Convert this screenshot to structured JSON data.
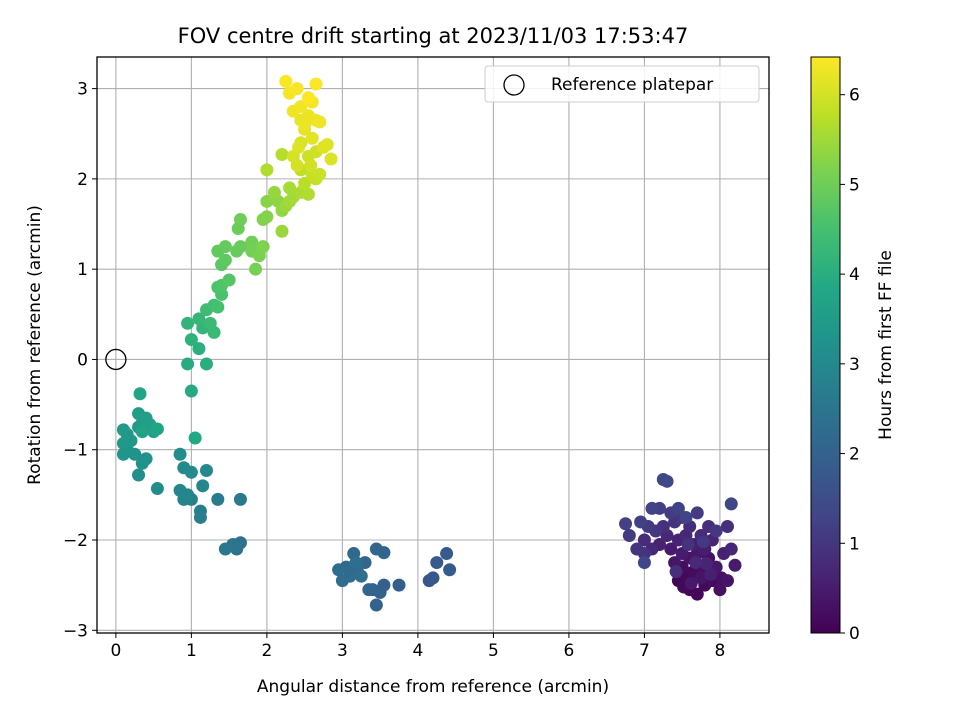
{
  "chart_data": {
    "type": "scatter",
    "title": "FOV centre drift starting at 2023/11/03 17:53:47",
    "xlabel": "Angular distance from reference (arcmin)",
    "ylabel": "Rotation from reference (arcmin)",
    "xlim": [
      -0.25,
      8.65
    ],
    "ylim": [
      -3.03,
      3.35
    ],
    "xticks": [
      "0",
      "1",
      "2",
      "3",
      "4",
      "5",
      "6",
      "7",
      "8"
    ],
    "yticks": [
      "−3",
      "−2",
      "−1",
      "0",
      "1",
      "2",
      "3"
    ],
    "grid": true,
    "legend": {
      "position": "top-right",
      "entries": [
        "Reference platepar"
      ]
    },
    "colorbar": {
      "label": "Hours from first FF file",
      "colormap": "viridis",
      "range": [
        0,
        6.42
      ],
      "ticks": [
        "0",
        "1",
        "2",
        "3",
        "4",
        "5",
        "6"
      ]
    },
    "reference": {
      "x": 0,
      "y": 0
    },
    "marker_color": "#000000",
    "points": [
      [
        7.45,
        -2.45,
        0.05
      ],
      [
        7.6,
        -2.55,
        0.08
      ],
      [
        7.7,
        -2.6,
        0.1
      ],
      [
        7.55,
        -2.4,
        0.12
      ],
      [
        7.8,
        -2.5,
        0.15
      ],
      [
        7.65,
        -2.35,
        0.18
      ],
      [
        7.9,
        -2.45,
        0.2
      ],
      [
        7.5,
        -2.3,
        0.22
      ],
      [
        8.0,
        -2.55,
        0.25
      ],
      [
        7.75,
        -2.3,
        0.28
      ],
      [
        7.85,
        -2.2,
        0.3
      ],
      [
        7.6,
        -2.2,
        0.33
      ],
      [
        8.1,
        -2.45,
        0.35
      ],
      [
        7.4,
        -2.25,
        0.38
      ],
      [
        7.7,
        -2.15,
        0.4
      ],
      [
        7.95,
        -2.3,
        0.42
      ],
      [
        8.2,
        -2.28,
        0.45
      ],
      [
        7.5,
        -2.15,
        0.48
      ],
      [
        7.35,
        -2.1,
        0.5
      ],
      [
        7.8,
        -2.1,
        0.52
      ],
      [
        7.65,
        -2.05,
        0.55
      ],
      [
        8.05,
        -2.15,
        0.58
      ],
      [
        7.2,
        -2.05,
        0.6
      ],
      [
        7.45,
        -2.0,
        0.62
      ],
      [
        7.9,
        -2.0,
        0.65
      ],
      [
        8.15,
        -2.1,
        0.68
      ],
      [
        7.1,
        -2.1,
        0.7
      ],
      [
        7.55,
        -1.95,
        0.72
      ],
      [
        7.3,
        -1.95,
        0.75
      ],
      [
        7.75,
        -1.95,
        0.78
      ],
      [
        7.0,
        -2.0,
        0.8
      ],
      [
        7.6,
        -1.85,
        0.82
      ],
      [
        7.85,
        -1.85,
        0.85
      ],
      [
        8.1,
        -1.85,
        0.88
      ],
      [
        7.25,
        -1.85,
        0.9
      ],
      [
        7.4,
        -1.8,
        0.92
      ],
      [
        7.0,
        -2.15,
        0.95
      ],
      [
        6.9,
        -2.1,
        0.98
      ],
      [
        7.15,
        -1.9,
        1.0
      ],
      [
        7.5,
        -1.75,
        1.02
      ],
      [
        7.95,
        -1.9,
        1.05
      ],
      [
        6.8,
        -1.95,
        1.08
      ],
      [
        7.05,
        -1.85,
        1.1
      ],
      [
        7.7,
        -1.7,
        1.12
      ],
      [
        7.35,
        -1.7,
        1.15
      ],
      [
        6.95,
        -1.8,
        1.18
      ],
      [
        7.2,
        -1.65,
        1.2
      ],
      [
        6.75,
        -1.82,
        1.22
      ],
      [
        7.45,
        -1.65,
        1.25
      ],
      [
        7.1,
        -1.65,
        1.28
      ],
      [
        7.55,
        -1.75,
        1.3
      ],
      [
        8.15,
        -1.6,
        1.32
      ],
      [
        7.0,
        -2.25,
        1.35
      ],
      [
        7.3,
        -1.35,
        1.38
      ],
      [
        7.25,
        -1.33,
        1.4
      ],
      [
        7.75,
        -2.42,
        0.36
      ],
      [
        7.62,
        -2.48,
        0.44
      ],
      [
        7.88,
        -2.38,
        0.56
      ],
      [
        7.52,
        -2.52,
        0.14
      ],
      [
        7.82,
        -2.26,
        0.64
      ],
      [
        7.68,
        -2.25,
        0.74
      ],
      [
        7.42,
        -2.35,
        0.84
      ],
      [
        8.02,
        -2.42,
        0.26
      ],
      [
        7.58,
        -2.05,
        0.94
      ],
      [
        7.78,
        -2.02,
        1.04
      ],
      [
        4.15,
        -2.45,
        1.7
      ],
      [
        4.2,
        -2.42,
        1.75
      ],
      [
        4.25,
        -2.25,
        1.78
      ],
      [
        4.38,
        -2.15,
        1.82
      ],
      [
        4.42,
        -2.33,
        1.85
      ],
      [
        3.75,
        -2.5,
        1.9
      ],
      [
        3.55,
        -2.5,
        1.95
      ],
      [
        3.5,
        -2.58,
        1.98
      ],
      [
        3.45,
        -2.72,
        2.0
      ],
      [
        3.4,
        -2.55,
        2.02
      ],
      [
        3.35,
        -2.55,
        2.05
      ],
      [
        3.55,
        -2.14,
        2.08
      ],
      [
        3.45,
        -2.1,
        2.1
      ],
      [
        3.3,
        -2.25,
        2.12
      ],
      [
        3.15,
        -2.15,
        2.15
      ],
      [
        3.2,
        -2.35,
        2.18
      ],
      [
        3.1,
        -2.4,
        2.2
      ],
      [
        3.05,
        -2.3,
        2.22
      ],
      [
        3.0,
        -2.45,
        2.25
      ],
      [
        2.95,
        -2.33,
        2.28
      ],
      [
        3.25,
        -2.4,
        2.3
      ],
      [
        3.18,
        -2.25,
        2.32
      ],
      [
        1.65,
        -2.03,
        2.4
      ],
      [
        1.6,
        -2.1,
        2.45
      ],
      [
        1.55,
        -2.05,
        2.5
      ],
      [
        1.45,
        -2.1,
        2.55
      ],
      [
        1.65,
        -1.55,
        2.6
      ],
      [
        1.35,
        -1.55,
        2.65
      ],
      [
        1.12,
        -1.75,
        2.7
      ],
      [
        1.12,
        -1.68,
        2.75
      ],
      [
        1.0,
        -1.55,
        2.8
      ],
      [
        0.9,
        -1.55,
        2.85
      ],
      [
        0.95,
        -1.5,
        2.9
      ],
      [
        0.85,
        -1.45,
        2.93
      ],
      [
        1.15,
        -1.4,
        2.96
      ],
      [
        1.2,
        -1.23,
        3.0
      ],
      [
        1.0,
        -1.25,
        3.03
      ],
      [
        0.9,
        -1.2,
        3.06
      ],
      [
        0.85,
        -1.05,
        3.1
      ],
      [
        0.55,
        -1.43,
        3.13
      ],
      [
        0.3,
        -1.28,
        3.16
      ],
      [
        0.35,
        -1.15,
        3.2
      ],
      [
        0.4,
        -1.1,
        3.23
      ],
      [
        0.25,
        -1.05,
        3.26
      ],
      [
        0.15,
        -1.0,
        3.3
      ],
      [
        0.1,
        -1.05,
        3.33
      ],
      [
        0.2,
        -0.9,
        3.36
      ],
      [
        0.1,
        -0.93,
        3.4
      ],
      [
        0.15,
        -0.83,
        3.43
      ],
      [
        0.1,
        -0.78,
        3.46
      ],
      [
        0.3,
        -0.75,
        3.5
      ],
      [
        0.35,
        -0.7,
        3.53
      ],
      [
        0.3,
        -0.6,
        3.56
      ],
      [
        0.4,
        -0.65,
        3.6
      ],
      [
        0.45,
        -0.72,
        3.63
      ],
      [
        0.5,
        -0.8,
        3.66
      ],
      [
        0.35,
        -0.8,
        3.7
      ],
      [
        0.32,
        -0.38,
        3.73
      ],
      [
        0.55,
        -0.77,
        3.76
      ],
      [
        1.05,
        -0.87,
        3.85
      ],
      [
        1.0,
        -0.35,
        3.9
      ],
      [
        0.95,
        -0.05,
        3.95
      ],
      [
        1.2,
        -0.05,
        4.0
      ],
      [
        1.1,
        0.12,
        4.05
      ],
      [
        1.0,
        0.22,
        4.1
      ],
      [
        0.95,
        0.4,
        4.15
      ],
      [
        1.15,
        0.35,
        4.2
      ],
      [
        1.1,
        0.45,
        4.25
      ],
      [
        1.3,
        0.3,
        4.3
      ],
      [
        1.25,
        0.4,
        4.35
      ],
      [
        1.2,
        0.55,
        4.4
      ],
      [
        1.3,
        0.6,
        4.45
      ],
      [
        1.35,
        0.58,
        4.5
      ],
      [
        1.4,
        0.72,
        4.55
      ],
      [
        1.35,
        0.8,
        4.6
      ],
      [
        1.4,
        0.82,
        4.65
      ],
      [
        1.5,
        0.88,
        4.7
      ],
      [
        1.4,
        1.05,
        4.75
      ],
      [
        1.45,
        1.1,
        4.8
      ],
      [
        1.35,
        1.2,
        4.85
      ],
      [
        1.45,
        1.25,
        4.88
      ],
      [
        1.6,
        1.2,
        4.9
      ],
      [
        1.65,
        1.25,
        4.93
      ],
      [
        1.62,
        1.45,
        4.96
      ],
      [
        1.65,
        1.55,
        5.0
      ],
      [
        1.8,
        1.3,
        5.03
      ],
      [
        1.8,
        1.2,
        5.06
      ],
      [
        1.85,
        1.0,
        5.1
      ],
      [
        1.9,
        1.15,
        5.13
      ],
      [
        1.95,
        1.25,
        5.16
      ],
      [
        1.95,
        1.55,
        5.2
      ],
      [
        2.0,
        1.58,
        5.23
      ],
      [
        2.0,
        1.75,
        5.26
      ],
      [
        2.1,
        1.8,
        5.3
      ],
      [
        2.15,
        1.75,
        5.33
      ],
      [
        2.2,
        1.65,
        5.36
      ],
      [
        2.1,
        1.85,
        5.4
      ],
      [
        2.2,
        1.42,
        5.43
      ],
      [
        2.25,
        1.7,
        5.46
      ],
      [
        2.3,
        1.75,
        5.5
      ],
      [
        2.35,
        1.8,
        5.53
      ],
      [
        2.3,
        1.9,
        5.56
      ],
      [
        2.45,
        1.85,
        5.6
      ],
      [
        2.55,
        1.83,
        5.63
      ],
      [
        2.0,
        2.1,
        5.66
      ],
      [
        2.2,
        2.27,
        5.7
      ],
      [
        2.5,
        1.95,
        5.75
      ],
      [
        2.45,
        2.1,
        5.8
      ],
      [
        2.65,
        2.0,
        5.85
      ],
      [
        2.6,
        2.05,
        5.88
      ],
      [
        2.7,
        2.05,
        5.9
      ],
      [
        2.55,
        2.25,
        5.93
      ],
      [
        2.65,
        2.3,
        5.96
      ],
      [
        2.4,
        2.15,
        6.0
      ],
      [
        2.35,
        2.25,
        6.02
      ],
      [
        2.45,
        2.4,
        6.05
      ],
      [
        2.85,
        2.22,
        6.08
      ],
      [
        2.75,
        2.35,
        6.1
      ],
      [
        2.8,
        2.38,
        6.12
      ],
      [
        2.6,
        2.45,
        6.15
      ],
      [
        2.5,
        2.55,
        6.17
      ],
      [
        2.45,
        2.65,
        6.2
      ],
      [
        2.55,
        2.7,
        6.22
      ],
      [
        2.65,
        2.65,
        6.24
      ],
      [
        2.7,
        2.63,
        6.26
      ],
      [
        2.35,
        2.75,
        6.28
      ],
      [
        2.45,
        2.8,
        6.3
      ],
      [
        2.6,
        2.85,
        6.32
      ],
      [
        2.3,
        2.95,
        6.34
      ],
      [
        2.4,
        3.0,
        6.36
      ],
      [
        2.25,
        3.08,
        6.38
      ],
      [
        2.65,
        3.05,
        6.4
      ],
      [
        2.55,
        2.9,
        6.42
      ],
      [
        2.5,
        2.6,
        6.25
      ],
      [
        2.42,
        2.35,
        6.1
      ],
      [
        2.58,
        2.15,
        5.98
      ]
    ]
  }
}
